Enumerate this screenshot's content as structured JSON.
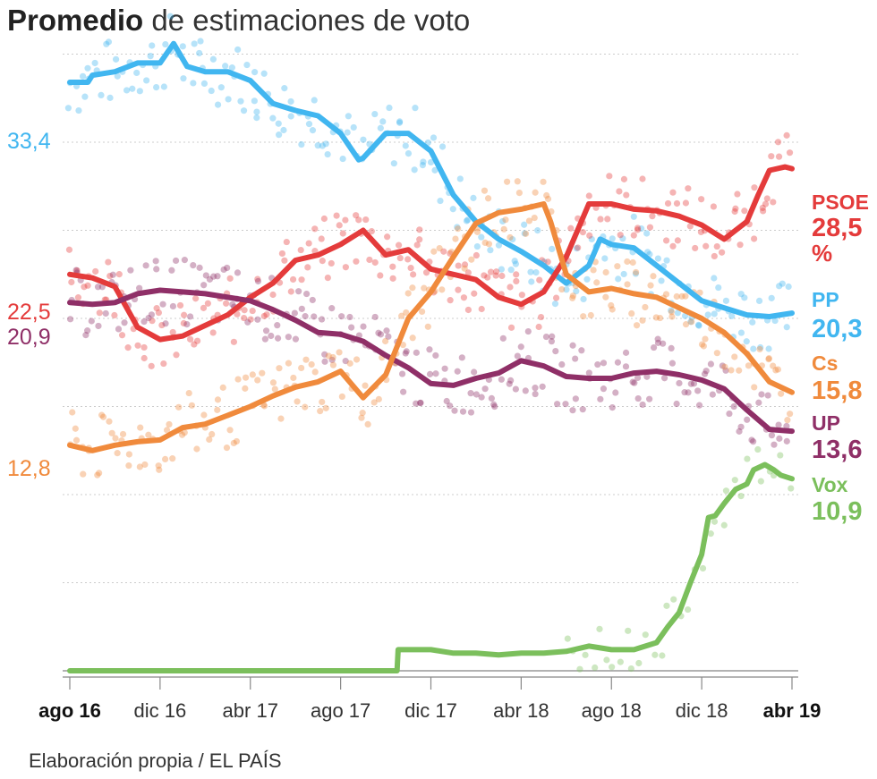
{
  "title_bold": "Promedio",
  "title_rest": " de estimaciones de voto",
  "source": "Elaboración propia / EL PAÍS",
  "chart_data": {
    "type": "line",
    "title": "Promedio de estimaciones de voto",
    "xlabel": "",
    "ylabel": "",
    "x_ticks": [
      "ago 16",
      "dic 16",
      "abr 17",
      "ago 17",
      "dic 17",
      "abr 18",
      "ago 18",
      "dic 18",
      "abr 19"
    ],
    "x_ticks_bold": [
      true,
      false,
      false,
      false,
      false,
      false,
      false,
      false,
      true
    ],
    "x_range": [
      "2016-07",
      "2019-04"
    ],
    "ylim": [
      0,
      36
    ],
    "grid": true,
    "start_labels": [
      {
        "series": "PP",
        "text": "33,4"
      },
      {
        "series": "PSOE",
        "text": "22,5"
      },
      {
        "series": "UP",
        "text": "20,9"
      },
      {
        "series": "Cs",
        "text": "12,8"
      }
    ],
    "end_labels": [
      {
        "series": "PSOE",
        "name": "PSOE",
        "text": "28,5",
        "unit": "%"
      },
      {
        "series": "PP",
        "name": "PP",
        "text": "20,3"
      },
      {
        "series": "Cs",
        "name": "Cs",
        "text": "15,8"
      },
      {
        "series": "UP",
        "name": "UP",
        "text": "13,6"
      },
      {
        "series": "Vox",
        "name": "Vox",
        "text": "10,9"
      }
    ],
    "series": [
      {
        "name": "PP",
        "color": "#41b6f0",
        "points": [
          [
            0,
            33.4
          ],
          [
            0.8,
            33.4
          ],
          [
            1,
            33.8
          ],
          [
            2,
            34
          ],
          [
            3,
            34.5
          ],
          [
            4,
            34.5
          ],
          [
            4.6,
            35.6
          ],
          [
            5.2,
            34.3
          ],
          [
            6,
            34
          ],
          [
            7,
            34
          ],
          [
            8,
            33.5
          ],
          [
            9,
            32.2
          ],
          [
            10,
            31.8
          ],
          [
            11,
            31.5
          ],
          [
            12,
            30.5
          ],
          [
            12.8,
            29
          ],
          [
            13,
            29.1
          ],
          [
            14,
            30.5
          ],
          [
            15,
            30.5
          ],
          [
            16,
            29.5
          ],
          [
            17,
            27
          ],
          [
            18,
            25.5
          ],
          [
            19,
            24.5
          ],
          [
            20,
            23.8
          ],
          [
            21,
            23
          ],
          [
            22,
            22
          ],
          [
            23,
            23
          ],
          [
            23.5,
            24.5
          ],
          [
            24,
            24.2
          ],
          [
            25,
            24
          ],
          [
            26,
            23
          ],
          [
            27,
            22
          ],
          [
            28,
            21
          ],
          [
            29,
            20.6
          ],
          [
            30,
            20.2
          ],
          [
            31,
            20.1
          ],
          [
            32,
            20.3
          ]
        ]
      },
      {
        "name": "PSOE",
        "color": "#e43b3b",
        "points": [
          [
            0,
            22.5
          ],
          [
            1,
            22.3
          ],
          [
            2,
            21.8
          ],
          [
            3,
            19.5
          ],
          [
            4,
            18.8
          ],
          [
            5,
            19
          ],
          [
            6,
            19.6
          ],
          [
            7,
            20.2
          ],
          [
            8,
            21.2
          ],
          [
            9,
            22
          ],
          [
            10,
            23.3
          ],
          [
            11,
            23.6
          ],
          [
            12,
            24.2
          ],
          [
            13,
            25
          ],
          [
            14,
            23.6
          ],
          [
            15,
            23.9
          ],
          [
            16,
            22.8
          ],
          [
            17,
            22.5
          ],
          [
            18,
            22.2
          ],
          [
            19,
            21.2
          ],
          [
            20,
            20.8
          ],
          [
            21,
            21.5
          ],
          [
            22,
            23.5
          ],
          [
            23,
            26.5
          ],
          [
            24,
            26.5
          ],
          [
            25,
            26.2
          ],
          [
            26,
            26.1
          ],
          [
            27,
            25.8
          ],
          [
            28,
            25.3
          ],
          [
            29,
            24.5
          ],
          [
            30,
            25.5
          ],
          [
            30.5,
            27
          ],
          [
            31,
            28.4
          ],
          [
            31.7,
            28.6
          ],
          [
            32,
            28.5
          ]
        ]
      },
      {
        "name": "UP",
        "color": "#8f2f67",
        "points": [
          [
            0,
            20.9
          ],
          [
            1,
            20.8
          ],
          [
            2,
            20.9
          ],
          [
            3,
            21.4
          ],
          [
            4,
            21.6
          ],
          [
            5,
            21.5
          ],
          [
            6,
            21.4
          ],
          [
            7,
            21.2
          ],
          [
            8,
            21
          ],
          [
            9,
            20.5
          ],
          [
            10,
            19.9
          ],
          [
            11,
            19.2
          ],
          [
            12,
            19.1
          ],
          [
            13,
            18.7
          ],
          [
            14,
            17.9
          ],
          [
            15,
            17.2
          ],
          [
            16,
            16.3
          ],
          [
            17,
            16.2
          ],
          [
            18,
            16.6
          ],
          [
            19,
            16.9
          ],
          [
            20,
            17.6
          ],
          [
            21,
            17.3
          ],
          [
            22,
            16.7
          ],
          [
            23,
            16.6
          ],
          [
            24,
            16.6
          ],
          [
            25,
            16.9
          ],
          [
            26,
            17
          ],
          [
            27,
            16.8
          ],
          [
            28,
            16.5
          ],
          [
            29,
            16
          ],
          [
            30,
            14.8
          ],
          [
            31,
            13.7
          ],
          [
            32,
            13.6
          ]
        ]
      },
      {
        "name": "Cs",
        "color": "#f08a3c",
        "points": [
          [
            0,
            12.8
          ],
          [
            1,
            12.5
          ],
          [
            2,
            12.8
          ],
          [
            3,
            13
          ],
          [
            4,
            13.1
          ],
          [
            5,
            13.8
          ],
          [
            6,
            14
          ],
          [
            7,
            14.5
          ],
          [
            8,
            15
          ],
          [
            9,
            15.6
          ],
          [
            10,
            16.1
          ],
          [
            11,
            16.4
          ],
          [
            12,
            17
          ],
          [
            13,
            15.5
          ],
          [
            14,
            16.8
          ],
          [
            15,
            20
          ],
          [
            16,
            21.5
          ],
          [
            17,
            23.5
          ],
          [
            18,
            25.4
          ],
          [
            19,
            26
          ],
          [
            20,
            26.2
          ],
          [
            21,
            26.5
          ],
          [
            21.3,
            25.5
          ],
          [
            22,
            22.5
          ],
          [
            23,
            21.5
          ],
          [
            24,
            21.7
          ],
          [
            25,
            21.4
          ],
          [
            26,
            21.2
          ],
          [
            27,
            20.6
          ],
          [
            28,
            20
          ],
          [
            29,
            19.2
          ],
          [
            30,
            18
          ],
          [
            31,
            16.4
          ],
          [
            32,
            15.8
          ]
        ]
      },
      {
        "name": "Vox",
        "color": "#7bbf5c",
        "points": [
          [
            0,
            0
          ],
          [
            14.5,
            0
          ],
          [
            14.55,
            1.2
          ],
          [
            16,
            1.2
          ],
          [
            17,
            1
          ],
          [
            18,
            1
          ],
          [
            19,
            0.9
          ],
          [
            20,
            1
          ],
          [
            21,
            1
          ],
          [
            22,
            1.1
          ],
          [
            23,
            1.4
          ],
          [
            24,
            1.2
          ],
          [
            25,
            1.2
          ],
          [
            26,
            1.6
          ],
          [
            26.5,
            2.5
          ],
          [
            27,
            3.3
          ],
          [
            27.5,
            5
          ],
          [
            28,
            6.6
          ],
          [
            28.3,
            8.7
          ],
          [
            28.6,
            8.8
          ],
          [
            29,
            9.5
          ],
          [
            29.5,
            10.3
          ],
          [
            30,
            10.6
          ],
          [
            30.3,
            11.4
          ],
          [
            30.8,
            11.7
          ],
          [
            31.2,
            11.4
          ],
          [
            31.5,
            11.1
          ],
          [
            32,
            10.9
          ]
        ]
      }
    ]
  }
}
